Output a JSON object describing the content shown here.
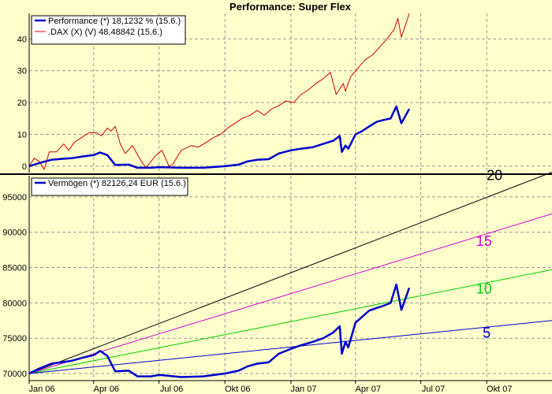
{
  "chart_data": [
    {
      "type": "line",
      "title": "Performance: Super Flex",
      "ylim": [
        -2,
        48
      ],
      "yticks": [
        0,
        10,
        20,
        30,
        40
      ],
      "grid": true,
      "legend_position": "top-left",
      "legend": [
        {
          "name": "Performance (*) 18,1232 % (15.6.)",
          "color": "#0000cc"
        },
        {
          "name": ".DAX (X) (V) 48,48842 (15.6.)",
          "color": "#cc0000"
        }
      ],
      "series": [
        {
          "name": "Performance",
          "color": "#0000cc",
          "points": [
            [
              "2006-01-01",
              0
            ],
            [
              "2006-01-15",
              1
            ],
            [
              "2006-02-01",
              2
            ],
            [
              "2006-02-15",
              2.3
            ],
            [
              "2006-03-01",
              2.5
            ],
            [
              "2006-03-15",
              3
            ],
            [
              "2006-04-01",
              3.5
            ],
            [
              "2006-04-10",
              4.3
            ],
            [
              "2006-04-20",
              3.5
            ],
            [
              "2006-05-01",
              0.4
            ],
            [
              "2006-05-20",
              0.5
            ],
            [
              "2006-06-01",
              -0.5
            ],
            [
              "2006-06-20",
              -0.5
            ],
            [
              "2006-07-01",
              -0.3
            ],
            [
              "2006-08-01",
              -0.5
            ],
            [
              "2006-09-01",
              -0.5
            ],
            [
              "2006-10-01",
              0
            ],
            [
              "2006-10-20",
              0.5
            ],
            [
              "2006-11-01",
              1.5
            ],
            [
              "2006-11-15",
              2
            ],
            [
              "2006-12-01",
              2.2
            ],
            [
              "2006-12-15",
              4
            ],
            [
              "2007-01-01",
              5
            ],
            [
              "2007-01-15",
              5.5
            ],
            [
              "2007-02-01",
              6
            ],
            [
              "2007-02-15",
              7
            ],
            [
              "2007-03-01",
              8
            ],
            [
              "2007-03-10",
              9.5
            ],
            [
              "2007-03-13",
              4.5
            ],
            [
              "2007-03-18",
              6.5
            ],
            [
              "2007-03-22",
              5.5
            ],
            [
              "2007-04-01",
              10
            ],
            [
              "2007-04-10",
              11
            ],
            [
              "2007-04-20",
              12.5
            ],
            [
              "2007-05-01",
              14
            ],
            [
              "2007-05-10",
              14.5
            ],
            [
              "2007-05-20",
              15
            ],
            [
              "2007-05-28",
              18.8
            ],
            [
              "2007-06-04",
              13.5
            ],
            [
              "2007-06-15",
              18
            ]
          ]
        },
        {
          "name": ".DAX",
          "color": "#cc0000",
          "points": [
            [
              "2006-01-01",
              0
            ],
            [
              "2006-01-08",
              2.5
            ],
            [
              "2006-01-15",
              1.5
            ],
            [
              "2006-01-22",
              -1
            ],
            [
              "2006-01-29",
              4.5
            ],
            [
              "2006-02-08",
              4.5
            ],
            [
              "2006-02-18",
              7
            ],
            [
              "2006-02-25",
              5
            ],
            [
              "2006-03-05",
              7.5
            ],
            [
              "2006-03-15",
              9
            ],
            [
              "2006-03-25",
              10.5
            ],
            [
              "2006-04-05",
              10.5
            ],
            [
              "2006-04-12",
              9.5
            ],
            [
              "2006-04-20",
              12
            ],
            [
              "2006-04-25",
              11
            ],
            [
              "2006-05-01",
              12.5
            ],
            [
              "2006-05-08",
              7
            ],
            [
              "2006-05-15",
              4
            ],
            [
              "2006-05-25",
              6.5
            ],
            [
              "2006-06-05",
              2
            ],
            [
              "2006-06-13",
              -0.5
            ],
            [
              "2006-06-25",
              3
            ],
            [
              "2006-07-05",
              5
            ],
            [
              "2006-07-15",
              0
            ],
            [
              "2006-07-20",
              0.5
            ],
            [
              "2006-08-01",
              5
            ],
            [
              "2006-08-15",
              6.5
            ],
            [
              "2006-08-25",
              6
            ],
            [
              "2006-09-05",
              7.5
            ],
            [
              "2006-09-15",
              9
            ],
            [
              "2006-09-25",
              10
            ],
            [
              "2006-10-05",
              12
            ],
            [
              "2006-10-15",
              13.5
            ],
            [
              "2006-10-25",
              15
            ],
            [
              "2006-11-05",
              16
            ],
            [
              "2006-11-15",
              17.5
            ],
            [
              "2006-11-25",
              16
            ],
            [
              "2006-12-05",
              18
            ],
            [
              "2006-12-15",
              19
            ],
            [
              "2006-12-25",
              20.5
            ],
            [
              "2007-01-05",
              20
            ],
            [
              "2007-01-15",
              22.5
            ],
            [
              "2007-01-25",
              24
            ],
            [
              "2007-02-05",
              26
            ],
            [
              "2007-02-15",
              27.5
            ],
            [
              "2007-02-25",
              29.5
            ],
            [
              "2007-03-05",
              22.5
            ],
            [
              "2007-03-15",
              26
            ],
            [
              "2007-03-18",
              23.5
            ],
            [
              "2007-03-25",
              28
            ],
            [
              "2007-04-05",
              31
            ],
            [
              "2007-04-15",
              33.5
            ],
            [
              "2007-04-25",
              35
            ],
            [
              "2007-05-05",
              37.5
            ],
            [
              "2007-05-15",
              40
            ],
            [
              "2007-05-25",
              43
            ],
            [
              "2007-05-30",
              46.5
            ],
            [
              "2007-06-04",
              40.5
            ],
            [
              "2007-06-15",
              48
            ]
          ]
        }
      ]
    },
    {
      "type": "line",
      "ylim": [
        69000,
        98000
      ],
      "yticks": [
        70000,
        75000,
        80000,
        85000,
        90000,
        95000
      ],
      "grid": true,
      "legend_position": "top-left",
      "legend": [
        {
          "name": "Vermögen (*) 82126,24 EUR (15.6.)",
          "color": "#0000cc"
        }
      ],
      "series": [
        {
          "name": "Vermögen",
          "color": "#0000cc",
          "points": [
            [
              "2006-01-01",
              70000
            ],
            [
              "2006-01-15",
              70700
            ],
            [
              "2006-02-01",
              71400
            ],
            [
              "2006-02-15",
              71600
            ],
            [
              "2006-03-01",
              71800
            ],
            [
              "2006-03-15",
              72200
            ],
            [
              "2006-04-01",
              72600
            ],
            [
              "2006-04-10",
              73200
            ],
            [
              "2006-04-20",
              72500
            ],
            [
              "2006-05-01",
              70300
            ],
            [
              "2006-05-20",
              70400
            ],
            [
              "2006-06-01",
              69600
            ],
            [
              "2006-06-20",
              69600
            ],
            [
              "2006-07-01",
              69800
            ],
            [
              "2006-08-01",
              69500
            ],
            [
              "2006-09-01",
              69600
            ],
            [
              "2006-10-01",
              70000
            ],
            [
              "2006-10-20",
              70400
            ],
            [
              "2006-11-01",
              71000
            ],
            [
              "2006-11-15",
              71400
            ],
            [
              "2006-12-01",
              71600
            ],
            [
              "2006-12-15",
              72800
            ],
            [
              "2007-01-01",
              73500
            ],
            [
              "2007-01-15",
              74000
            ],
            [
              "2007-02-01",
              74500
            ],
            [
              "2007-02-15",
              75000
            ],
            [
              "2007-03-01",
              75800
            ],
            [
              "2007-03-10",
              76700
            ],
            [
              "2007-03-13",
              72800
            ],
            [
              "2007-03-18",
              74500
            ],
            [
              "2007-03-22",
              73700
            ],
            [
              "2007-04-01",
              77200
            ],
            [
              "2007-04-10",
              78000
            ],
            [
              "2007-04-20",
              78900
            ],
            [
              "2007-05-01",
              79300
            ],
            [
              "2007-05-10",
              79600
            ],
            [
              "2007-05-20",
              80000
            ],
            [
              "2007-05-28",
              82600
            ],
            [
              "2007-06-04",
              79000
            ],
            [
              "2007-06-15",
              82126
            ]
          ]
        }
      ],
      "reference_lines": [
        {
          "label": "20",
          "color": "#000000",
          "start": [
            "2006-01-01",
            70000
          ],
          "end": [
            "2007-12-31",
            98500
          ]
        },
        {
          "label": "15",
          "color": "#cc00cc",
          "start": [
            "2006-01-01",
            70000
          ],
          "end": [
            "2007-12-31",
            92600
          ]
        },
        {
          "label": "10",
          "color": "#00cc00",
          "start": [
            "2006-01-01",
            70000
          ],
          "end": [
            "2007-12-31",
            84700
          ]
        },
        {
          "label": "5",
          "color": "#0000cc",
          "start": [
            "2006-01-01",
            70000
          ],
          "end": [
            "2007-12-31",
            77500
          ]
        }
      ]
    }
  ],
  "x_axis": {
    "range": [
      "2006-01-01",
      "2007-12-31"
    ],
    "ticks": [
      {
        "date": "2006-01-01",
        "label": "Jan 06"
      },
      {
        "date": "2006-04-01",
        "label": "Apr 06"
      },
      {
        "date": "2006-07-01",
        "label": "Jul 06"
      },
      {
        "date": "2006-10-01",
        "label": "Okt 06"
      },
      {
        "date": "2007-01-01",
        "label": "Jan 07"
      },
      {
        "date": "2007-04-01",
        "label": "Apr 07"
      },
      {
        "date": "2007-07-01",
        "label": "Jul 07"
      },
      {
        "date": "2007-10-01",
        "label": "Okt 07"
      }
    ]
  },
  "colors": {
    "background": "#ffffcc",
    "grid": "#999999"
  }
}
